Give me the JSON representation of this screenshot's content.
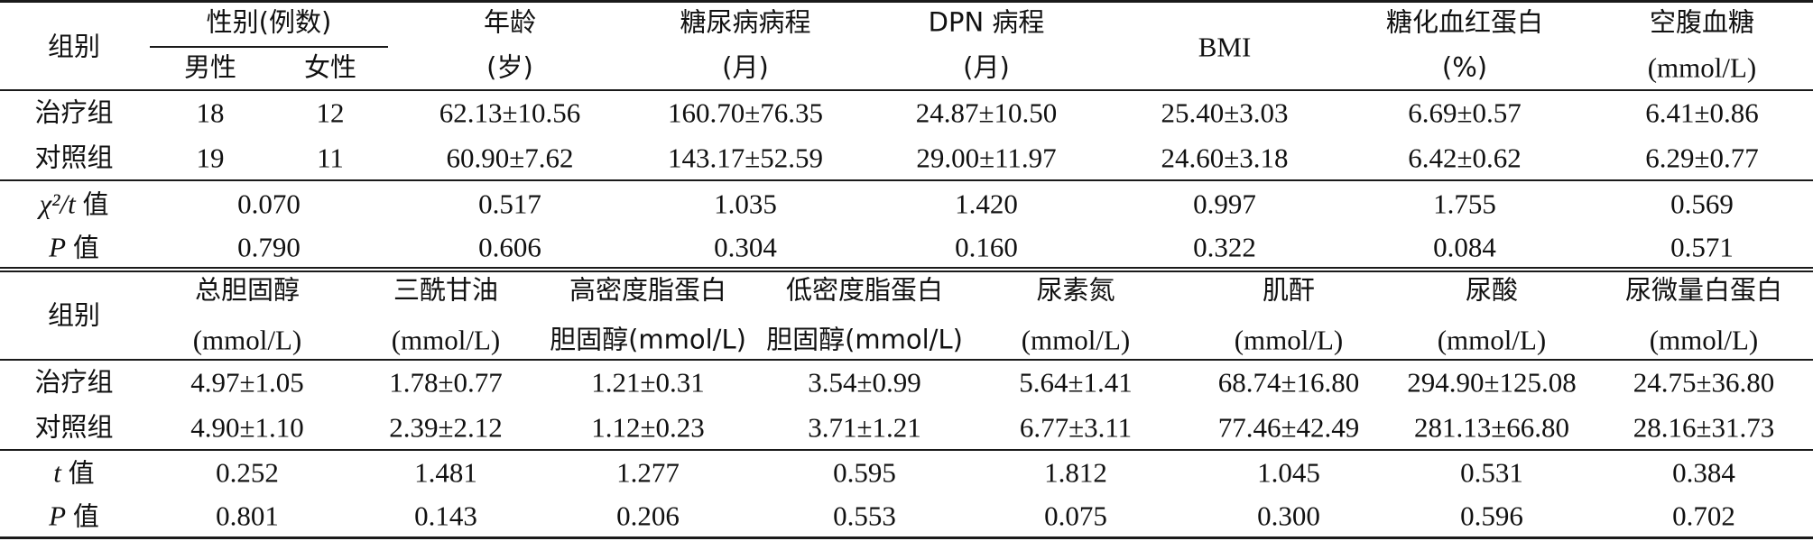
{
  "table1": {
    "header": {
      "group": "组别",
      "sex": "性别(例数)",
      "male": "男性",
      "female": "女性",
      "age": "年龄",
      "age_unit": "(岁)",
      "diabetes": "糖尿病病程",
      "diabetes_unit": "(月)",
      "dpn": "DPN 病程",
      "dpn_unit": "(月)",
      "bmi": "BMI",
      "hba1c": "糖化血红蛋白",
      "hba1c_unit": "(%)",
      "fbg": "空腹血糖",
      "fbg_unit": "(mmol/L)"
    },
    "rows": [
      {
        "label": "治疗组",
        "male": "18",
        "female": "12",
        "age": "62.13±10.56",
        "diabetes": "160.70±76.35",
        "dpn": "24.87±10.50",
        "bmi": "25.40±3.03",
        "hba1c": "6.69±0.57",
        "fbg": "6.41±0.86"
      },
      {
        "label": "对照组",
        "male": "19",
        "female": "11",
        "age": "60.90±7.62",
        "diabetes": "143.17±52.59",
        "dpn": "29.00±11.97",
        "bmi": "24.60±3.18",
        "hba1c": "6.42±0.62",
        "fbg": "6.29±0.77"
      }
    ],
    "stat_rows": [
      {
        "label_sym": "χ²/t",
        "label_suffix": "值",
        "sex": "0.070",
        "age": "0.517",
        "diabetes": "1.035",
        "dpn": "1.420",
        "bmi": "0.997",
        "hba1c": "1.755",
        "fbg": "0.569"
      },
      {
        "label_sym": "P",
        "label_suffix": "值",
        "sex": "0.790",
        "age": "0.606",
        "diabetes": "0.304",
        "dpn": "0.160",
        "bmi": "0.322",
        "hba1c": "0.084",
        "fbg": "0.571"
      }
    ]
  },
  "table2": {
    "header": {
      "group": "组别",
      "tc": "总胆固醇",
      "tc_unit": "(mmol/L)",
      "tg": "三酰甘油",
      "tg_unit": "(mmol/L)",
      "hdl": "高密度脂蛋白",
      "hdl_unit": "胆固醇(mmol/L)",
      "ldl": "低密度脂蛋白",
      "ldl_unit": "胆固醇(mmol/L)",
      "bun": "尿素氮",
      "bun_unit": "(mmol/L)",
      "cr": "肌酐",
      "cr_unit": "(mmol/L)",
      "ua": "尿酸",
      "ua_unit": "(mmol/L)",
      "malb": "尿微量白蛋白",
      "malb_unit": "(mmol/L)"
    },
    "rows": [
      {
        "label": "治疗组",
        "tc": "4.97±1.05",
        "tg": "1.78±0.77",
        "hdl": "1.21±0.31",
        "ldl": "3.54±0.99",
        "bun": "5.64±1.41",
        "cr": "68.74±16.80",
        "ua": "294.90±125.08",
        "malb": "24.75±36.80"
      },
      {
        "label": "对照组",
        "tc": "4.90±1.10",
        "tg": "2.39±2.12",
        "hdl": "1.12±0.23",
        "ldl": "3.71±1.21",
        "bun": "6.77±3.11",
        "cr": "77.46±42.49",
        "ua": "281.13±66.80",
        "malb": "28.16±31.73"
      }
    ],
    "stat_rows": [
      {
        "label_sym": "t",
        "label_suffix": "值",
        "tc": "0.252",
        "tg": "1.481",
        "hdl": "1.277",
        "ldl": "0.595",
        "bun": "1.812",
        "cr": "1.045",
        "ua": "0.531",
        "malb": "0.384"
      },
      {
        "label_sym": "P",
        "label_suffix": "值",
        "tc": "0.801",
        "tg": "0.143",
        "hdl": "0.206",
        "ldl": "0.553",
        "bun": "0.075",
        "cr": "0.300",
        "ua": "0.596",
        "malb": "0.702"
      }
    ]
  }
}
